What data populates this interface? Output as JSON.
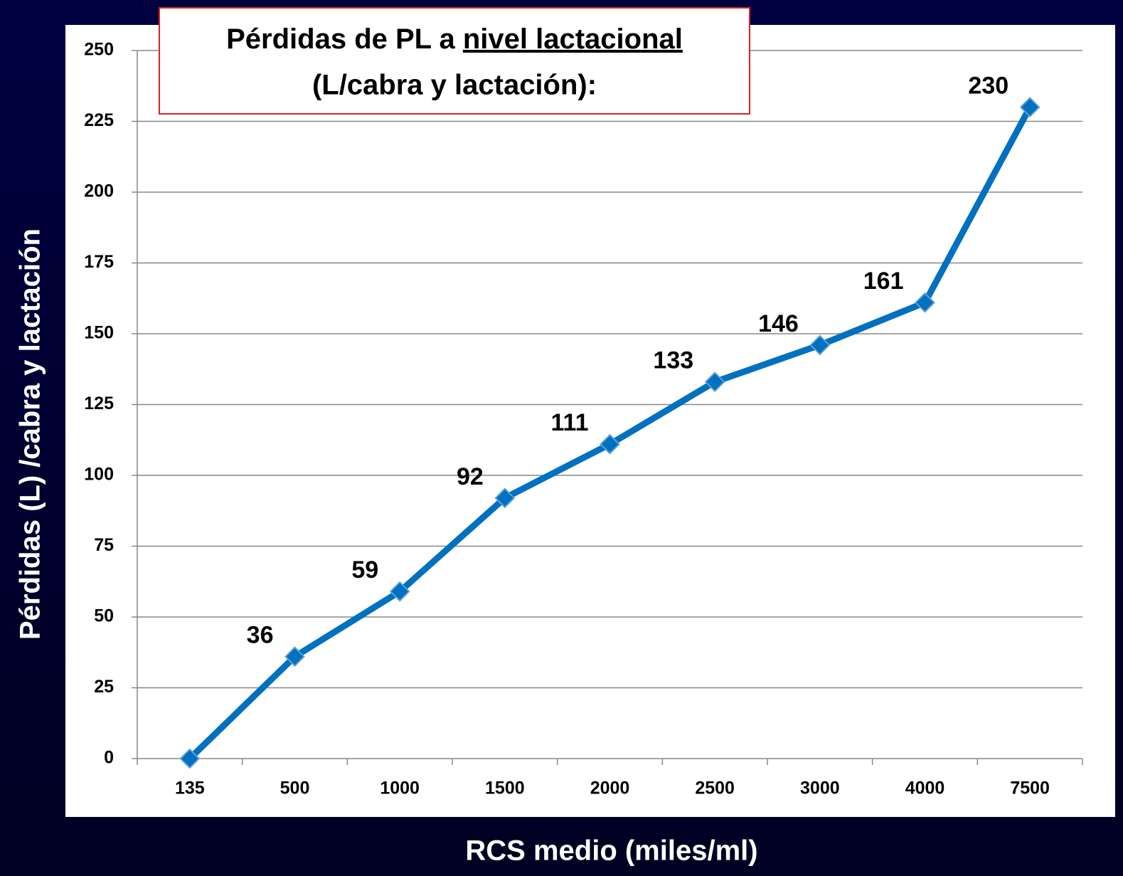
{
  "chart_data": {
    "type": "line",
    "title": [
      "Pérdidas de PL a",
      "nivel lactacional",
      "(L/cabra y lactación):"
    ],
    "x_label": "RCS medio (miles/ml)",
    "y_label": "Pérdidas (L) /cabra y lactación",
    "categories": [
      "135",
      "500",
      "1000",
      "1500",
      "2000",
      "2500",
      "3000",
      "4000",
      "7500"
    ],
    "series": [
      {
        "name": "Pérdidas",
        "color": "#0070c0",
        "values": [
          0,
          36,
          59,
          92,
          111,
          133,
          146,
          161,
          230
        ],
        "value_labels": [
          null,
          "36",
          "59",
          "92",
          "111",
          "133",
          "146",
          "161",
          "230"
        ]
      }
    ],
    "ylim": [
      0,
      250
    ],
    "yticks": [
      0,
      25,
      50,
      75,
      100,
      125,
      150,
      175,
      200,
      225,
      250
    ],
    "grid": true
  }
}
